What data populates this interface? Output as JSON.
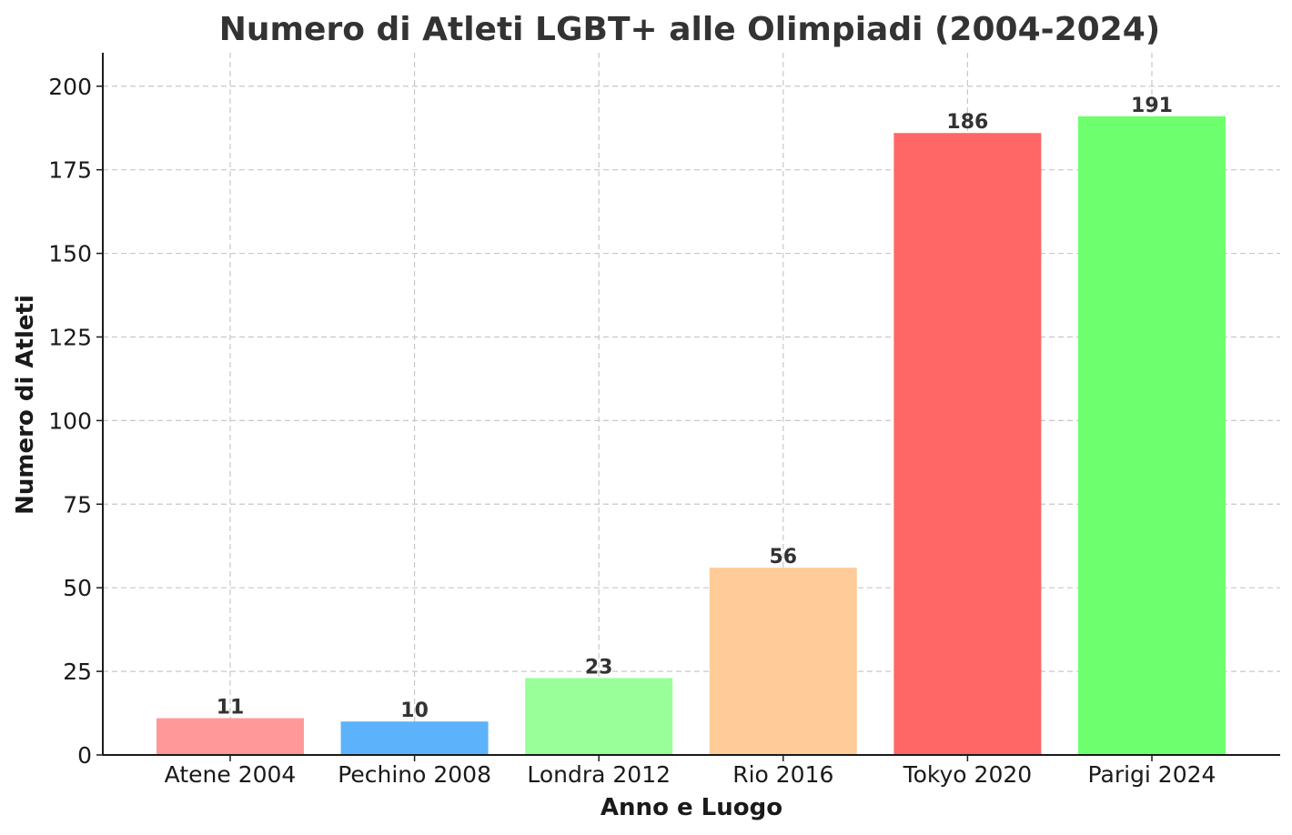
{
  "chart_data": {
    "type": "bar",
    "title": "Numero di Atleti LGBT+ alle Olimpiadi (2004-2024)",
    "xlabel": "Anno e Luogo",
    "ylabel": "Numero di Atleti",
    "categories": [
      "Atene 2004",
      "Pechino 2008",
      "Londra 2012",
      "Rio 2016",
      "Tokyo 2020",
      "Parigi 2024"
    ],
    "values": [
      11,
      10,
      23,
      56,
      186,
      191
    ],
    "colors": [
      "#ff9999",
      "#5cb3fb",
      "#99ff99",
      "#ffcc99",
      "#ff6666",
      "#6dff6d"
    ],
    "ylim": [
      0,
      210
    ],
    "yticks": [
      0,
      25,
      50,
      75,
      100,
      125,
      150,
      175,
      200
    ],
    "grid": true,
    "data_labels": true
  }
}
